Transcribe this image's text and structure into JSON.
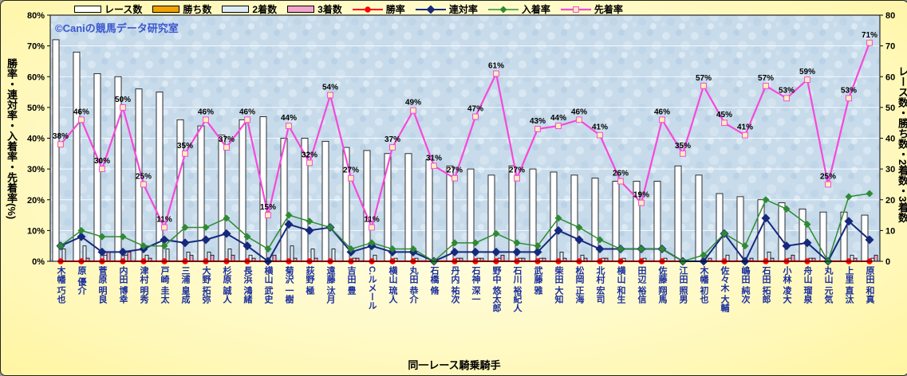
{
  "watermark": "©Caniの競馬データ研究室",
  "chart_data": {
    "type": "bar+line",
    "title": "",
    "xlabel": "同一レース騎乗騎手",
    "ylabel_left": "勝率・連対率・入着率・先着率(%)",
    "ylabel_right": "レース数・勝ち数・2着数・3着数",
    "legend_position": "top",
    "grid": true,
    "axes": {
      "left": {
        "min": 0,
        "max": 80,
        "step": 10,
        "suffix": "%"
      },
      "right": {
        "min": 0,
        "max": 80,
        "step": 10,
        "suffix": ""
      }
    },
    "categories": [
      "木幡 巧也",
      "原 優介",
      "菅原 明良",
      "内田 博幸",
      "津村 明秀",
      "戸崎 圭太",
      "三浦 皇成",
      "大野 拓弥",
      "杉原 誠人",
      "長浜 鴻緒",
      "横山 武史",
      "菊沢 一樹",
      "荻野 極",
      "遠藤 汰月",
      "吉田 豊",
      "C.ルメール",
      "横山 琉人",
      "丸田 恭介",
      "石橋 脩",
      "丹内 祐次",
      "石神 深一",
      "野中 悠太郎",
      "石川 裕紀人",
      "武藤 雅",
      "柴田 大知",
      "松岡 正海",
      "北村 宏司",
      "横山 和生",
      "田辺 裕信",
      "佐藤 翔馬",
      "江田 照男",
      "木幡 初也",
      "佐々木 大輔",
      "嶋田 純次",
      "石田 拓郎",
      "小林 凌大",
      "舟山 瑠泉",
      "丸山 元気",
      "上里 直汰",
      "原田 和真"
    ],
    "bar_series": [
      {
        "name": "レース数",
        "key": "races",
        "fill": "#ffffff",
        "stroke": "#000000",
        "values": [
          72,
          68,
          61,
          60,
          56,
          55,
          46,
          44,
          41,
          46,
          47,
          40,
          40,
          39,
          37,
          36,
          35,
          35,
          33,
          31,
          30,
          28,
          31,
          30,
          29,
          28,
          27,
          26,
          26,
          26,
          31,
          28,
          22,
          21,
          20,
          19,
          17,
          16,
          16,
          15
        ]
      },
      {
        "name": "勝ち数",
        "key": "wins",
        "fill": "#f2a100",
        "stroke": "#000000",
        "values": [
          0,
          0,
          0,
          0,
          0,
          0,
          0,
          0,
          0,
          0,
          0,
          0,
          0,
          0,
          0,
          0,
          0,
          0,
          0,
          0,
          0,
          0,
          0,
          0,
          0,
          0,
          0,
          0,
          0,
          0,
          0,
          0,
          0,
          0,
          0,
          0,
          0,
          0,
          0,
          0
        ]
      },
      {
        "name": "2着数",
        "key": "seconds",
        "fill": "#dcebf5",
        "stroke": "#000000",
        "values": [
          4,
          5,
          2,
          2,
          2,
          4,
          3,
          3,
          4,
          2,
          0,
          5,
          4,
          4,
          1,
          2,
          1,
          1,
          0,
          1,
          1,
          1,
          1,
          1,
          3,
          2,
          1,
          1,
          1,
          1,
          0,
          0,
          2,
          0,
          3,
          1,
          1,
          0,
          2,
          1
        ]
      },
      {
        "name": "3着数",
        "key": "thirds",
        "fill": "#f2a5cb",
        "stroke": "#000000",
        "values": [
          0,
          1,
          3,
          3,
          1,
          0,
          2,
          2,
          2,
          1,
          2,
          1,
          1,
          0,
          1,
          0,
          0,
          0,
          0,
          1,
          1,
          2,
          1,
          1,
          1,
          1,
          1,
          0,
          0,
          0,
          0,
          1,
          0,
          1,
          1,
          2,
          1,
          0,
          1,
          2
        ]
      }
    ],
    "line_series": [
      {
        "name": "勝率",
        "key": "win-rate",
        "color": "#ff0000",
        "width": 2,
        "marker": "circle",
        "marker_fill": "#ff0000",
        "marker_size": 3.2,
        "labels": false,
        "values": [
          0,
          0,
          0,
          0,
          0,
          0,
          0,
          0,
          0,
          0,
          0,
          0,
          0,
          0,
          0,
          0,
          0,
          0,
          0,
          0,
          0,
          0,
          0,
          0,
          0,
          0,
          0,
          0,
          0,
          0,
          0,
          0,
          0,
          0,
          0,
          0,
          0,
          0,
          0,
          0
        ]
      },
      {
        "name": "連対率",
        "key": "quinella-rate",
        "color": "#16297c",
        "width": 2,
        "marker": "diamond",
        "marker_fill": "#16297c",
        "marker_size": 4,
        "labels": false,
        "values": [
          5,
          8,
          3,
          3,
          4,
          7,
          6,
          7,
          9,
          5,
          0,
          12,
          10,
          11,
          3,
          5,
          3,
          3,
          0,
          3,
          3,
          3,
          3,
          3,
          10,
          7,
          4,
          4,
          4,
          4,
          0,
          0,
          9,
          0,
          14,
          5,
          6,
          0,
          13,
          7
        ]
      },
      {
        "name": "入着率",
        "key": "placing-rate",
        "color": "#2e8b32",
        "width": 1.5,
        "marker": "diamond",
        "marker_fill": "#2e8b32",
        "marker_size": 3,
        "labels": false,
        "values": [
          5,
          10,
          8,
          8,
          5,
          5,
          11,
          11,
          14,
          8,
          4,
          15,
          13,
          11,
          4,
          6,
          4,
          4,
          0,
          6,
          6,
          9,
          6,
          5,
          14,
          11,
          7,
          4,
          4,
          4,
          0,
          2,
          9,
          5,
          20,
          17,
          12,
          0,
          21,
          22
        ]
      },
      {
        "name": "先着率",
        "key": "finish-ahead-rate",
        "color": "#f649d8",
        "width": 2.2,
        "marker": "square",
        "marker_fill": "#fff0b8",
        "marker_size": 3.4,
        "labels": true,
        "label_suffix": "%",
        "values": [
          38,
          46,
          30,
          50,
          25,
          11,
          35,
          46,
          37,
          46,
          15,
          44,
          32,
          54,
          27,
          11,
          37,
          49,
          31,
          27,
          47,
          61,
          27,
          43,
          44,
          46,
          41,
          26,
          19,
          46,
          35,
          57,
          45,
          41,
          57,
          53,
          59,
          25,
          53,
          71
        ]
      }
    ]
  }
}
